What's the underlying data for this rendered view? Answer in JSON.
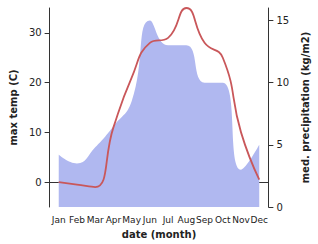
{
  "chart_data": {
    "type": "line",
    "x_label": "date (month)",
    "y_label": "max temp (C)",
    "y2_label": "med. precipitation (kg/m2)",
    "categories": [
      "Jan",
      "Feb",
      "Mar",
      "Apr",
      "May",
      "Jun",
      "Jul",
      "Aug",
      "Sep",
      "Oct",
      "Nov",
      "Dec"
    ],
    "series": [
      {
        "name": "med. precipitation",
        "type": "area",
        "axis": "y2",
        "color": "#b0b8f0",
        "values": [
          4.2,
          3.5,
          4.8,
          6.5,
          8.5,
          15,
          13,
          13,
          10,
          10,
          3,
          5
        ]
      },
      {
        "name": "max temp",
        "type": "line",
        "color": "#c9575a",
        "values": [
          0,
          -0.5,
          -1,
          11,
          21,
          28,
          29,
          35,
          28,
          25,
          10,
          0.5
        ]
      }
    ],
    "ylim": [
      -5,
      35
    ],
    "yticks": [
      0,
      10,
      20,
      30
    ],
    "y2lim": [
      0,
      16
    ],
    "y2ticks": [
      0,
      5,
      10,
      15
    ],
    "grid": false
  }
}
